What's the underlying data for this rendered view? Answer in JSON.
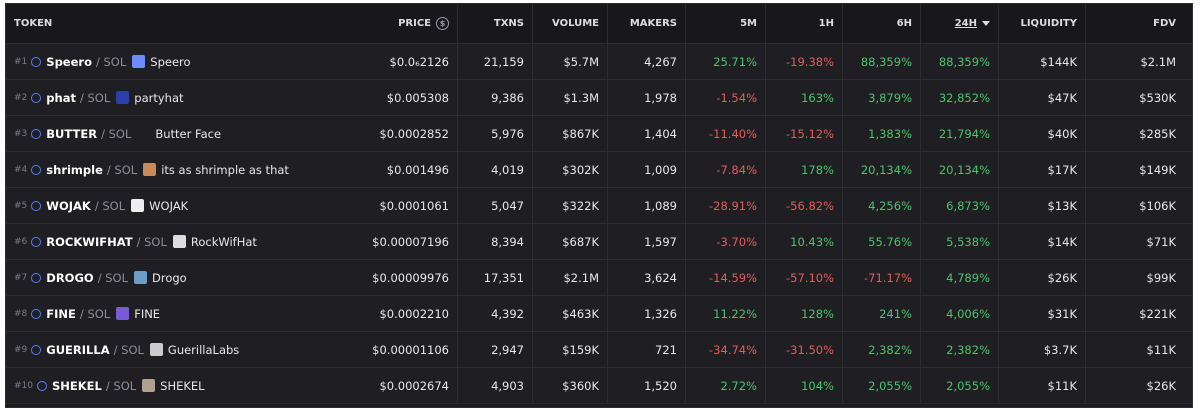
{
  "table": {
    "columns": [
      "TOKEN",
      "PRICE",
      "TXNS",
      "VOLUME",
      "MAKERS",
      "5M",
      "1H",
      "6H",
      "24H",
      "LIQUIDITY",
      "FDV"
    ],
    "rows": [
      {
        "rank": "#1",
        "symbol": "Speero",
        "chain": "SOL",
        "name": "Speero",
        "price": "$0.0₆2126",
        "txns": "21,159",
        "volume": "$5.7M",
        "makers": "4,267",
        "m5": "25.71%",
        "h1": "-19.38%",
        "h6": "88,359%",
        "h24": "88,359%",
        "liquidity": "$144K",
        "fdv": "$2.1M"
      },
      {
        "rank": "#2",
        "symbol": "phat",
        "chain": "SOL",
        "name": "partyhat",
        "price": "$0.005308",
        "txns": "9,386",
        "volume": "$1.3M",
        "makers": "1,978",
        "m5": "-1.54%",
        "h1": "163%",
        "h6": "3,879%",
        "h24": "32,852%",
        "liquidity": "$47K",
        "fdv": "$530K"
      },
      {
        "rank": "#3",
        "symbol": "BUTTER",
        "chain": "SOL",
        "name": "Butter Face",
        "price": "$0.0002852",
        "txns": "5,976",
        "volume": "$867K",
        "makers": "1,404",
        "m5": "-11.40%",
        "h1": "-15.12%",
        "h6": "1,383%",
        "h24": "21,794%",
        "liquidity": "$40K",
        "fdv": "$285K"
      },
      {
        "rank": "#4",
        "symbol": "shrimple",
        "chain": "SOL",
        "name": "its as shrimple as that",
        "price": "$0.001496",
        "txns": "4,019",
        "volume": "$302K",
        "makers": "1,009",
        "m5": "-7.84%",
        "h1": "178%",
        "h6": "20,134%",
        "h24": "20,134%",
        "liquidity": "$17K",
        "fdv": "$149K"
      },
      {
        "rank": "#5",
        "symbol": "WOJAK",
        "chain": "SOL",
        "name": "WOJAK",
        "price": "$0.0001061",
        "txns": "5,047",
        "volume": "$322K",
        "makers": "1,089",
        "m5": "-28.91%",
        "h1": "-56.82%",
        "h6": "4,256%",
        "h24": "6,873%",
        "liquidity": "$13K",
        "fdv": "$106K"
      },
      {
        "rank": "#6",
        "symbol": "ROCKWIFHAT",
        "chain": "SOL",
        "name": "RockWifHat",
        "price": "$0.00007196",
        "txns": "8,394",
        "volume": "$687K",
        "makers": "1,597",
        "m5": "-3.70%",
        "h1": "10.43%",
        "h6": "55.76%",
        "h24": "5,538%",
        "liquidity": "$14K",
        "fdv": "$71K"
      },
      {
        "rank": "#7",
        "symbol": "DROGO",
        "chain": "SOL",
        "name": "Drogo",
        "price": "$0.00009976",
        "txns": "17,351",
        "volume": "$2.1M",
        "makers": "3,624",
        "m5": "-14.59%",
        "h1": "-57.10%",
        "h6": "-71.17%",
        "h24": "4,789%",
        "liquidity": "$26K",
        "fdv": "$99K"
      },
      {
        "rank": "#8",
        "symbol": "FINE",
        "chain": "SOL",
        "name": "FINE",
        "price": "$0.0002210",
        "txns": "4,392",
        "volume": "$463K",
        "makers": "1,326",
        "m5": "11.22%",
        "h1": "128%",
        "h6": "241%",
        "h24": "4,006%",
        "liquidity": "$31K",
        "fdv": "$221K"
      },
      {
        "rank": "#9",
        "symbol": "GUERILLA",
        "chain": "SOL",
        "name": "GuerillaLabs",
        "price": "$0.00001106",
        "txns": "2,947",
        "volume": "$159K",
        "makers": "721",
        "m5": "-34.74%",
        "h1": "-31.50%",
        "h6": "2,382%",
        "h24": "2,382%",
        "liquidity": "$3.7K",
        "fdv": "$11K"
      },
      {
        "rank": "#10",
        "symbol": "SHEKEL",
        "chain": "SOL",
        "name": "SHEKEL",
        "price": "$0.0002674",
        "txns": "4,903",
        "volume": "$360K",
        "makers": "1,520",
        "m5": "2.72%",
        "h1": "104%",
        "h6": "2,055%",
        "h24": "2,055%",
        "liquidity": "$11K",
        "fdv": "$26K"
      }
    ]
  }
}
